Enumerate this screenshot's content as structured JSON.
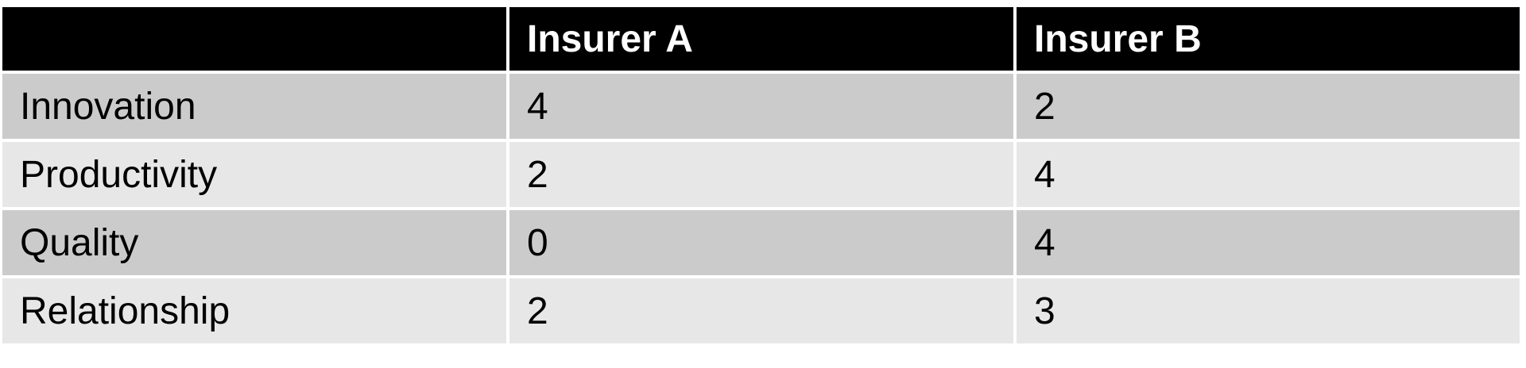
{
  "table": {
    "headers": [
      "",
      "Insurer A",
      "Insurer B"
    ],
    "rows": [
      {
        "label": "Innovation",
        "a": "4",
        "b": "2"
      },
      {
        "label": "Productivity",
        "a": "2",
        "b": "4"
      },
      {
        "label": "Quality",
        "a": "0",
        "b": "4"
      },
      {
        "label": "Relationship",
        "a": "2",
        "b": "3"
      }
    ]
  },
  "colors": {
    "header_bg": "#000000",
    "row_dark": "#cbcbcb",
    "row_light": "#e7e7e7"
  }
}
